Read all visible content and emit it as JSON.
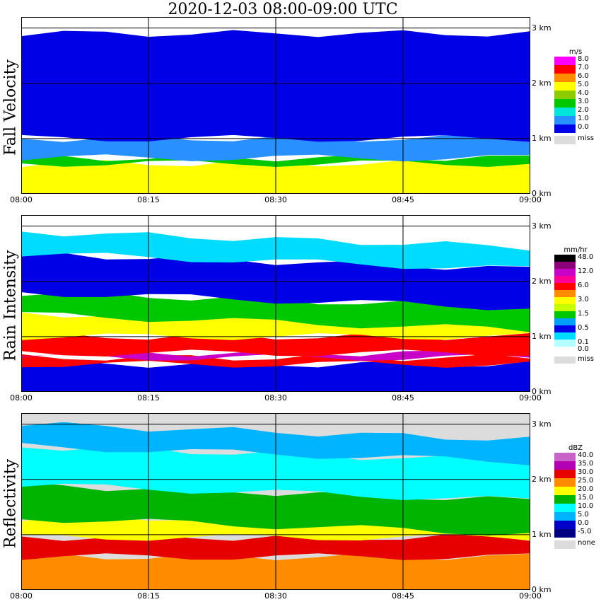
{
  "title": "2020-12-03   08:00-09:00 UTC",
  "x_ticks": [
    "08:00",
    "08:15",
    "08:30",
    "08:45",
    "09:00"
  ],
  "height_ticks": [
    "0 km",
    "1 km",
    "2 km",
    "3 km"
  ],
  "chart_data": [
    {
      "type": "heatmap",
      "title": "Fall Velocity",
      "xlabel": "",
      "ylabel": "Fall Velocity",
      "xlim": [
        "08:00",
        "09:00"
      ],
      "ylim_km": [
        0,
        3.2
      ],
      "grid": true,
      "legend_placement": "right",
      "legend_unit": "m/s",
      "legend": [
        {
          "label": "8.0",
          "color": "#ff00ff"
        },
        {
          "label": "7.0",
          "color": "#ff0000"
        },
        {
          "label": "6.0",
          "color": "#ff8c00"
        },
        {
          "label": "5.0",
          "color": "#ffff00"
        },
        {
          "label": "4.0",
          "color": "#8ccc00"
        },
        {
          "label": "3.0",
          "color": "#00c800"
        },
        {
          "label": "2.0",
          "color": "#00e6dc"
        },
        {
          "label": "1.0",
          "color": "#2890ff"
        },
        {
          "label": "0.0",
          "color": "#0000e6"
        },
        {
          "label": "miss",
          "color": "#dcdcdc"
        }
      ],
      "layers": [
        {
          "from_km": 0.0,
          "to_km": 0.55,
          "color": "#ffff00"
        },
        {
          "from_km": 0.55,
          "to_km": 0.65,
          "color": "#00c800"
        },
        {
          "from_km": 0.65,
          "to_km": 1.0,
          "color": "#2890ff"
        },
        {
          "from_km": 1.0,
          "to_km": 2.9,
          "color": "#0000e6"
        }
      ]
    },
    {
      "type": "heatmap",
      "title": "Rain Intensity",
      "xlabel": "",
      "ylabel": "Rain Intensity",
      "xlim": [
        "08:00",
        "09:00"
      ],
      "ylim_km": [
        0,
        3.2
      ],
      "grid": true,
      "legend_placement": "right",
      "legend_unit": "mm/hr",
      "legend": [
        {
          "label": "48.0",
          "color": "#000000"
        },
        {
          "label": "",
          "color": "#8c0078"
        },
        {
          "label": "12.0",
          "color": "#c800c8"
        },
        {
          "label": "",
          "color": "#ff0096"
        },
        {
          "label": "6.0",
          "color": "#ff0000"
        },
        {
          "label": "",
          "color": "#ff8c00"
        },
        {
          "label": "3.0",
          "color": "#ffff00"
        },
        {
          "label": "",
          "color": "#c8ff00"
        },
        {
          "label": "1.5",
          "color": "#00c800"
        },
        {
          "label": "",
          "color": "#00a0ff"
        },
        {
          "label": "0.5",
          "color": "#0000e6"
        },
        {
          "label": "",
          "color": "#00dcff"
        },
        {
          "label": "0.1",
          "color": "#b4ffff"
        },
        {
          "label": "0.0",
          "color": "#ffffff"
        },
        {
          "label": "miss",
          "color": "#dcdcdc"
        }
      ],
      "layers": [
        {
          "from_km": 0.0,
          "to_km": 0.5,
          "color": "#0000e6"
        },
        {
          "from_km": 0.5,
          "to_km": 0.62,
          "color": "#ff0000"
        },
        {
          "from_km": 0.62,
          "to_km": 0.7,
          "color": "#c800c8"
        },
        {
          "from_km": 0.7,
          "to_km": 1.0,
          "color": "#ff0000"
        },
        {
          "from_km": 1.0,
          "to_km": 1.4,
          "color": "#ffff00"
        },
        {
          "from_km": 1.4,
          "to_km": 1.8,
          "color": "#00c800"
        },
        {
          "from_km": 1.8,
          "to_km": 2.5,
          "color": "#0000e6"
        },
        {
          "from_km": 2.5,
          "to_km": 2.9,
          "color": "#00dcff"
        }
      ]
    },
    {
      "type": "heatmap",
      "title": "Reflectivity",
      "xlabel": "",
      "ylabel": "Reflectivity",
      "xlim": [
        "08:00",
        "09:00"
      ],
      "ylim_km": [
        0,
        3.2
      ],
      "grid": true,
      "legend_placement": "right",
      "legend_unit": "dBZ",
      "legend": [
        {
          "label": "40.0",
          "color": "#c864c8"
        },
        {
          "label": "35.0",
          "color": "#b400b4"
        },
        {
          "label": "30.0",
          "color": "#e60000"
        },
        {
          "label": "25.0",
          "color": "#ff8c00"
        },
        {
          "label": "20.0",
          "color": "#ffff00"
        },
        {
          "label": "15.0",
          "color": "#00b400"
        },
        {
          "label": "10.0",
          "color": "#00ffff"
        },
        {
          "label": "5.0",
          "color": "#00b4ff"
        },
        {
          "label": "0.0",
          "color": "#0000c8"
        },
        {
          "label": "-5.0",
          "color": "#000080"
        },
        {
          "label": "none",
          "color": "#dcdcdc"
        }
      ],
      "layers": [
        {
          "from_km": 0.0,
          "to_km": 0.6,
          "color": "#ff8c00"
        },
        {
          "from_km": 0.6,
          "to_km": 0.95,
          "color": "#e60000"
        },
        {
          "from_km": 0.95,
          "to_km": 1.3,
          "color": "#ffff00"
        },
        {
          "from_km": 1.3,
          "to_km": 1.9,
          "color": "#00b400"
        },
        {
          "from_km": 1.9,
          "to_km": 2.6,
          "color": "#00ffff"
        },
        {
          "from_km": 2.6,
          "to_km": 3.0,
          "color": "#00b4ff"
        }
      ]
    }
  ]
}
